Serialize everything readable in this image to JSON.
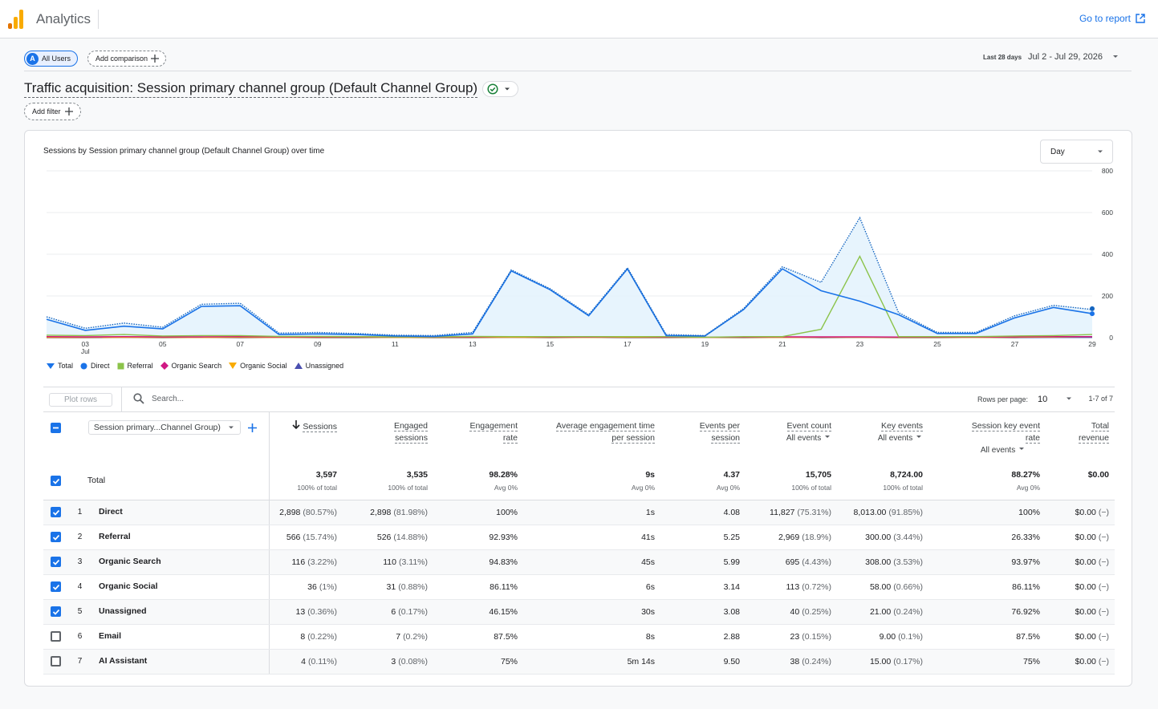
{
  "app": {
    "name": "Analytics",
    "goto_report": "Go to report"
  },
  "colors": {
    "accent": "#1a73e8",
    "total": "#1a73e8",
    "direct": "#1a73e8",
    "referral": "#8bc34a",
    "organic_search": "#d01884",
    "organic_social": "#f9ab00",
    "unassigned": "#4a4fb0"
  },
  "comparison": {
    "users_badge": "A",
    "users_label": "All Users",
    "add_comparison": "Add comparison"
  },
  "date_range": {
    "preset": "Last 28 days",
    "range": "Jul 2 - Jul 29, 2026"
  },
  "report": {
    "title": "Traffic acquisition: Session primary channel group (Default Channel Group)",
    "add_filter": "Add filter"
  },
  "chart": {
    "title": "Sessions by Session primary channel group (Default Channel Group) over time",
    "granularity": "Day",
    "legend": [
      "Total",
      "Direct",
      "Referral",
      "Organic Search",
      "Organic Social",
      "Unassigned"
    ]
  },
  "chart_data": {
    "type": "area",
    "x": [
      "Jul 2",
      "Jul 3",
      "Jul 4",
      "Jul 5",
      "Jul 6",
      "Jul 7",
      "Jul 8",
      "Jul 9",
      "Jul 10",
      "Jul 11",
      "Jul 12",
      "Jul 13",
      "Jul 14",
      "Jul 15",
      "Jul 16",
      "Jul 17",
      "Jul 18",
      "Jul 19",
      "Jul 20",
      "Jul 21",
      "Jul 22",
      "Jul 23",
      "Jul 24",
      "Jul 25",
      "Jul 26",
      "Jul 27",
      "Jul 28",
      "Jul 29"
    ],
    "x_tick_labels": [
      "03",
      "05",
      "07",
      "09",
      "11",
      "13",
      "15",
      "17",
      "19",
      "21",
      "23",
      "25",
      "27",
      "29"
    ],
    "x_sub_label": "Jul",
    "y_ticks": [
      "0",
      "200",
      "400",
      "600",
      "800"
    ],
    "ylim": [
      0,
      800
    ],
    "grid": true,
    "legend_position": "bottom-left",
    "series": [
      {
        "name": "Total",
        "values": [
          100,
          45,
          70,
          50,
          160,
          165,
          22,
          25,
          20,
          12,
          10,
          25,
          325,
          235,
          110,
          335,
          15,
          10,
          140,
          340,
          265,
          575,
          120,
          25,
          25,
          105,
          155,
          135
        ]
      },
      {
        "name": "Direct",
        "values": [
          88,
          35,
          55,
          42,
          150,
          153,
          15,
          18,
          15,
          8,
          6,
          18,
          320,
          230,
          105,
          330,
          10,
          8,
          135,
          330,
          225,
          175,
          110,
          20,
          20,
          95,
          145,
          115
        ]
      },
      {
        "name": "Referral",
        "values": [
          12,
          10,
          15,
          8,
          10,
          10,
          6,
          6,
          5,
          4,
          4,
          6,
          5,
          5,
          5,
          5,
          5,
          2,
          5,
          5,
          40,
          390,
          5,
          5,
          5,
          8,
          10,
          15
        ]
      },
      {
        "name": "Organic Search",
        "values": [
          5,
          4,
          5,
          4,
          4,
          5,
          4,
          4,
          4,
          3,
          3,
          4,
          5,
          4,
          3,
          5,
          3,
          2,
          3,
          4,
          4,
          4,
          3,
          3,
          3,
          4,
          5,
          5
        ]
      },
      {
        "name": "Organic Social",
        "values": [
          1,
          1,
          2,
          1,
          1,
          2,
          1,
          1,
          2,
          1,
          1,
          1,
          2,
          1,
          1,
          2,
          1,
          1,
          1,
          1,
          2,
          2,
          1,
          1,
          1,
          2,
          3,
          5
        ]
      },
      {
        "name": "Unassigned",
        "values": [
          0,
          0,
          1,
          0,
          1,
          0,
          1,
          0,
          0,
          1,
          0,
          0,
          1,
          0,
          1,
          0,
          0,
          1,
          0,
          1,
          0,
          1,
          0,
          0,
          1,
          0,
          1,
          1
        ]
      }
    ]
  },
  "table": {
    "toolbar": {
      "plot_rows": "Plot rows",
      "search_placeholder": "Search...",
      "rows_per_page_label": "Rows per page:",
      "rows_per_page": "10",
      "pagination": "1-7 of 7"
    },
    "dimension_selector": "Session primary...Channel Group)",
    "headers": [
      {
        "l1": "Sessions",
        "l2": "",
        "sub": "",
        "sorted": true
      },
      {
        "l1": "Engaged",
        "l2": "sessions",
        "sub": ""
      },
      {
        "l1": "Engagement",
        "l2": "rate",
        "sub": ""
      },
      {
        "l1": "Average engagement time",
        "l2": "per session",
        "sub": ""
      },
      {
        "l1": "Events per",
        "l2": "session",
        "sub": ""
      },
      {
        "l1": "Event count",
        "l2": "",
        "sub": "All events"
      },
      {
        "l1": "Key events",
        "l2": "",
        "sub": "All events"
      },
      {
        "l1": "Session key event",
        "l2": "rate",
        "sub": "All events"
      },
      {
        "l1": "Total",
        "l2": "revenue",
        "sub": ""
      }
    ],
    "total": {
      "label": "Total",
      "cells": [
        {
          "v": "3,597",
          "p": "100% of total"
        },
        {
          "v": "3,535",
          "p": "100% of total"
        },
        {
          "v": "98.28%",
          "p": "Avg 0%"
        },
        {
          "v": "9s",
          "p": "Avg 0%"
        },
        {
          "v": "4.37",
          "p": "Avg 0%"
        },
        {
          "v": "15,705",
          "p": "100% of total"
        },
        {
          "v": "8,724.00",
          "p": "100% of total"
        },
        {
          "v": "88.27%",
          "p": "Avg 0%"
        },
        {
          "v": "$0.00",
          "p": ""
        }
      ]
    },
    "rows": [
      {
        "n": "1",
        "label": "Direct",
        "checked": true,
        "cells": [
          [
            "2,898",
            "(80.57%)"
          ],
          [
            "2,898",
            "(81.98%)"
          ],
          [
            "100%",
            ""
          ],
          [
            "1s",
            ""
          ],
          [
            "4.08",
            ""
          ],
          [
            "11,827",
            "(75.31%)"
          ],
          [
            "8,013.00",
            "(91.85%)"
          ],
          [
            "100%",
            ""
          ],
          [
            "$0.00",
            "(−)"
          ]
        ]
      },
      {
        "n": "2",
        "label": "Referral",
        "checked": true,
        "cells": [
          [
            "566",
            "(15.74%)"
          ],
          [
            "526",
            "(14.88%)"
          ],
          [
            "92.93%",
            ""
          ],
          [
            "41s",
            ""
          ],
          [
            "5.25",
            ""
          ],
          [
            "2,969",
            "(18.9%)"
          ],
          [
            "300.00",
            "(3.44%)"
          ],
          [
            "26.33%",
            ""
          ],
          [
            "$0.00",
            "(−)"
          ]
        ]
      },
      {
        "n": "3",
        "label": "Organic Search",
        "checked": true,
        "cells": [
          [
            "116",
            "(3.22%)"
          ],
          [
            "110",
            "(3.11%)"
          ],
          [
            "94.83%",
            ""
          ],
          [
            "45s",
            ""
          ],
          [
            "5.99",
            ""
          ],
          [
            "695",
            "(4.43%)"
          ],
          [
            "308.00",
            "(3.53%)"
          ],
          [
            "93.97%",
            ""
          ],
          [
            "$0.00",
            "(−)"
          ]
        ]
      },
      {
        "n": "4",
        "label": "Organic Social",
        "checked": true,
        "cells": [
          [
            "36",
            "(1%)"
          ],
          [
            "31",
            "(0.88%)"
          ],
          [
            "86.11%",
            ""
          ],
          [
            "6s",
            ""
          ],
          [
            "3.14",
            ""
          ],
          [
            "113",
            "(0.72%)"
          ],
          [
            "58.00",
            "(0.66%)"
          ],
          [
            "86.11%",
            ""
          ],
          [
            "$0.00",
            "(−)"
          ]
        ]
      },
      {
        "n": "5",
        "label": "Unassigned",
        "checked": true,
        "cells": [
          [
            "13",
            "(0.36%)"
          ],
          [
            "6",
            "(0.17%)"
          ],
          [
            "46.15%",
            ""
          ],
          [
            "30s",
            ""
          ],
          [
            "3.08",
            ""
          ],
          [
            "40",
            "(0.25%)"
          ],
          [
            "21.00",
            "(0.24%)"
          ],
          [
            "76.92%",
            ""
          ],
          [
            "$0.00",
            "(−)"
          ]
        ]
      },
      {
        "n": "6",
        "label": "Email",
        "checked": false,
        "cells": [
          [
            "8",
            "(0.22%)"
          ],
          [
            "7",
            "(0.2%)"
          ],
          [
            "87.5%",
            ""
          ],
          [
            "8s",
            ""
          ],
          [
            "2.88",
            ""
          ],
          [
            "23",
            "(0.15%)"
          ],
          [
            "9.00",
            "(0.1%)"
          ],
          [
            "87.5%",
            ""
          ],
          [
            "$0.00",
            "(−)"
          ]
        ]
      },
      {
        "n": "7",
        "label": "AI Assistant",
        "checked": false,
        "cells": [
          [
            "4",
            "(0.11%)"
          ],
          [
            "3",
            "(0.08%)"
          ],
          [
            "75%",
            ""
          ],
          [
            "5m 14s",
            ""
          ],
          [
            "9.50",
            ""
          ],
          [
            "38",
            "(0.24%)"
          ],
          [
            "15.00",
            "(0.17%)"
          ],
          [
            "75%",
            ""
          ],
          [
            "$0.00",
            "(−)"
          ]
        ]
      }
    ]
  }
}
